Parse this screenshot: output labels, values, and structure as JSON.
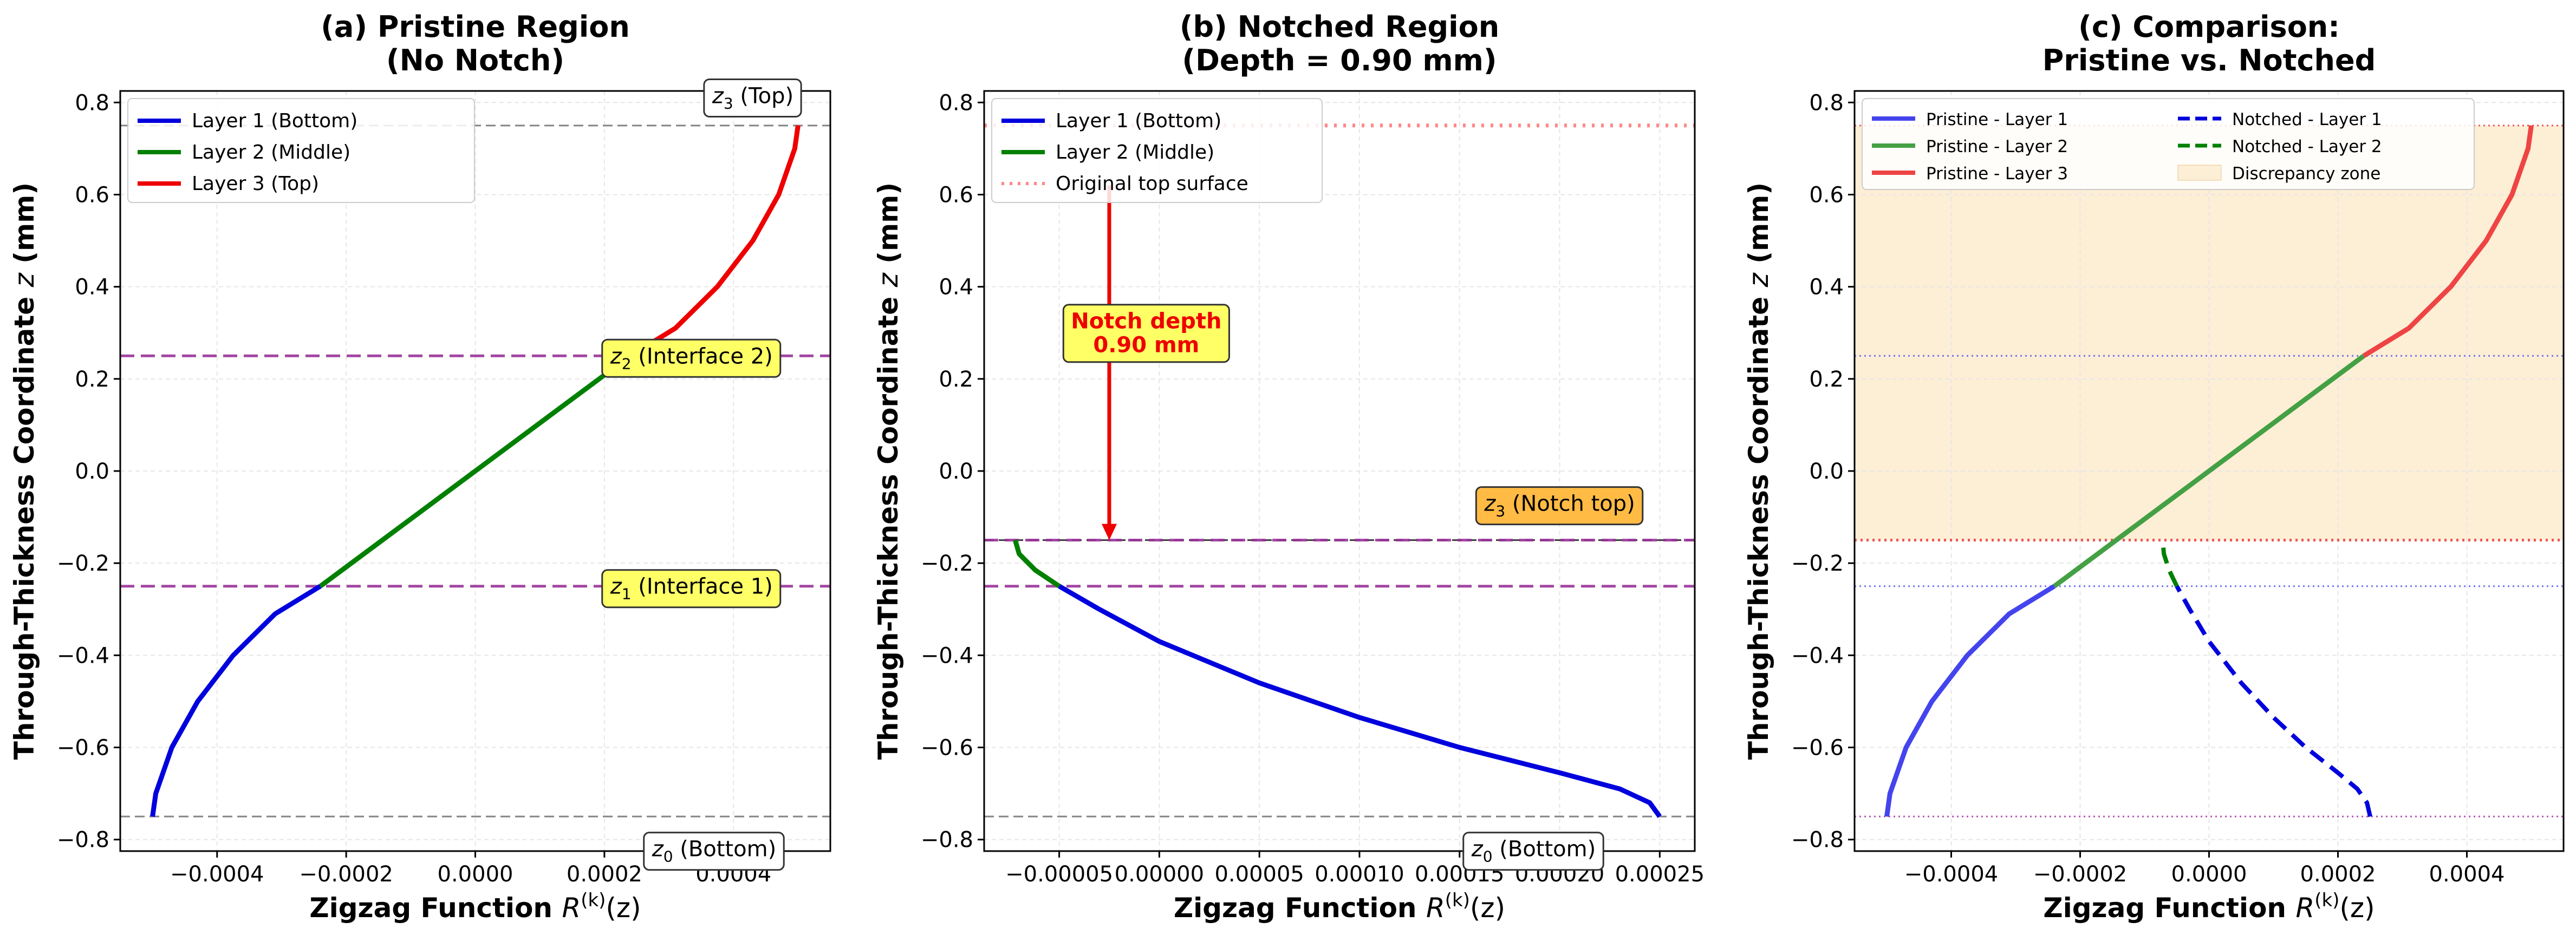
{
  "chart_data": [
    {
      "type": "line",
      "title_line1": "(a) Pristine Region",
      "title_line2": "(No Notch)",
      "xlabel_prefix": "Zigzag Function ",
      "xlabel_math": "R",
      "xlabel_sup": "(k)",
      "xlabel_suffix": "(z)",
      "ylabel_prefix": "Through-Thickness Coordinate ",
      "ylabel_math": "z",
      "ylabel_suffix": " (mm)",
      "xlim": [
        -0.00055,
        0.00055
      ],
      "ylim": [
        -0.825,
        0.825
      ],
      "xticks": [
        -0.0004,
        -0.0002,
        0.0,
        0.0002,
        0.0004
      ],
      "xtick_labels": [
        "−0.0004",
        "−0.0002",
        "0.0000",
        "0.0002",
        "0.0004"
      ],
      "yticks": [
        -0.8,
        -0.6,
        -0.4,
        -0.2,
        0.0,
        0.2,
        0.4,
        0.6,
        0.8
      ],
      "ytick_labels": [
        "−0.8",
        "−0.6",
        "−0.4",
        "−0.2",
        "0.0",
        "0.2",
        "0.4",
        "0.6",
        "0.8"
      ],
      "grid": true,
      "legend_position": "upper-left",
      "series": [
        {
          "name": "Layer 1 (Bottom)",
          "color": "#0000dd",
          "style": "solid",
          "x": [
            -0.0005,
            -0.000495,
            -0.00047,
            -0.00043,
            -0.000375,
            -0.00031,
            -0.00024
          ],
          "y": [
            -0.75,
            -0.7,
            -0.6,
            -0.5,
            -0.4,
            -0.31,
            -0.25
          ]
        },
        {
          "name": "Layer 2 (Middle)",
          "color": "#008000",
          "style": "solid",
          "x": [
            -0.00024,
            -0.00012,
            0.0,
            0.00012,
            0.00024
          ],
          "y": [
            -0.25,
            -0.125,
            0.0,
            0.125,
            0.25
          ]
        },
        {
          "name": "Layer 3 (Top)",
          "color": "#ee0000",
          "style": "solid",
          "x": [
            0.00024,
            0.00031,
            0.000375,
            0.00043,
            0.00047,
            0.000495,
            0.0005
          ],
          "y": [
            0.25,
            0.31,
            0.4,
            0.5,
            0.6,
            0.7,
            0.75
          ]
        }
      ],
      "hlines": [
        {
          "y": 0.75,
          "color": "#777777",
          "style": "dashed"
        },
        {
          "y": 0.25,
          "color": "#993399",
          "style": "dashed-bold"
        },
        {
          "y": -0.25,
          "color": "#993399",
          "style": "dashed-bold"
        },
        {
          "y": -0.75,
          "color": "#777777",
          "style": "dashed"
        }
      ],
      "annotations": [
        {
          "sub": "3",
          "text": " (Top)",
          "x": 0.00043,
          "y": 0.815,
          "bg": "#ffffff"
        },
        {
          "sub": "2",
          "text": " (Interface 2)",
          "x": 0.000335,
          "y": 0.25,
          "bg": "#ffff66"
        },
        {
          "sub": "1",
          "text": " (Interface 1)",
          "x": 0.000335,
          "y": -0.25,
          "bg": "#ffff66"
        },
        {
          "sub": "0",
          "text": " (Bottom)",
          "x": 0.00037,
          "y": -0.82,
          "bg": "#ffffff"
        }
      ]
    },
    {
      "type": "line",
      "title_line1": "(b) Notched Region",
      "title_line2": "(Depth = 0.90 mm)",
      "xlabel_prefix": "Zigzag Function ",
      "xlabel_math": "R",
      "xlabel_sup": "(k)",
      "xlabel_suffix": "(z)",
      "ylabel_prefix": "Through-Thickness Coordinate ",
      "ylabel_math": "z",
      "ylabel_suffix": " (mm)",
      "xlim": [
        -8.75e-05,
        0.0002675
      ],
      "ylim": [
        -0.825,
        0.825
      ],
      "xticks": [
        -5e-05,
        0.0,
        5e-05,
        0.0001,
        0.00015,
        0.0002,
        0.00025
      ],
      "xtick_labels": [
        "−0.00005",
        "0.00000",
        "0.00005",
        "0.00010",
        "0.00015",
        "0.00020",
        "0.00025"
      ],
      "yticks": [
        -0.8,
        -0.6,
        -0.4,
        -0.2,
        0.0,
        0.2,
        0.4,
        0.6,
        0.8
      ],
      "ytick_labels": [
        "−0.8",
        "−0.6",
        "−0.4",
        "−0.2",
        "0.0",
        "0.2",
        "0.4",
        "0.6",
        "0.8"
      ],
      "grid": true,
      "legend_position": "upper-left",
      "series": [
        {
          "name": "Layer 1 (Bottom)",
          "color": "#0000dd",
          "style": "solid",
          "x": [
            0.00025,
            0.000245,
            0.00023,
            0.0002,
            0.00015,
            0.0001,
            5e-05,
            0.0,
            -3e-05,
            -5e-05
          ],
          "y": [
            -0.75,
            -0.72,
            -0.69,
            -0.655,
            -0.6,
            -0.535,
            -0.46,
            -0.37,
            -0.3,
            -0.25
          ]
        },
        {
          "name": "Layer 2 (Middle)",
          "color": "#008000",
          "style": "solid",
          "x": [
            -5e-05,
            -6.2e-05,
            -7e-05,
            -7.2e-05
          ],
          "y": [
            -0.25,
            -0.215,
            -0.18,
            -0.15
          ]
        },
        {
          "name": "Original top surface",
          "color": "#ff8888",
          "style": "dotted",
          "x": [
            -8.75e-05,
            0.0002675
          ],
          "y": [
            0.75,
            0.75
          ]
        }
      ],
      "hlines": [
        {
          "y": -0.15,
          "color": "#222222",
          "style": "dashed"
        },
        {
          "y": -0.15,
          "color": "#993399",
          "style": "dashed-bold"
        },
        {
          "y": -0.25,
          "color": "#993399",
          "style": "dashed-bold"
        },
        {
          "y": -0.75,
          "color": "#777777",
          "style": "dashed"
        }
      ],
      "arrow": {
        "x": -2.5e-05,
        "y_from": 0.62,
        "y_to": -0.15,
        "color": "#ee0000"
      },
      "annotations": [
        {
          "text": "Notch depth",
          "text2": "0.90 mm",
          "x": -6.5e-06,
          "y": 0.3,
          "bg": "#ffff66",
          "color": "#ee0000",
          "bold": true
        },
        {
          "sub": "3",
          "text": " (Notch top)",
          "x": 0.0002,
          "y": -0.07,
          "bg": "#ffbb44"
        },
        {
          "sub": "0",
          "text": " (Bottom)",
          "x": 0.000187,
          "y": -0.82,
          "bg": "#ffffff"
        }
      ]
    },
    {
      "type": "line",
      "title_line1": "(c) Comparison:",
      "title_line2": "Pristine vs. Notched",
      "xlabel_prefix": "Zigzag Function ",
      "xlabel_math": "R",
      "xlabel_sup": "(k)",
      "xlabel_suffix": "(z)",
      "ylabel_prefix": "Through-Thickness Coordinate ",
      "ylabel_math": "z",
      "ylabel_suffix": " (mm)",
      "xlim": [
        -0.00055,
        0.00055
      ],
      "ylim": [
        -0.825,
        0.825
      ],
      "xticks": [
        -0.0004,
        -0.0002,
        0.0,
        0.0002,
        0.0004
      ],
      "xtick_labels": [
        "−0.0004",
        "−0.0002",
        "0.0000",
        "0.0002",
        "0.0004"
      ],
      "yticks": [
        -0.8,
        -0.6,
        -0.4,
        -0.2,
        0.0,
        0.2,
        0.4,
        0.6,
        0.8
      ],
      "ytick_labels": [
        "−0.8",
        "−0.6",
        "−0.4",
        "−0.2",
        "0.0",
        "0.2",
        "0.4",
        "0.6",
        "0.8"
      ],
      "grid": true,
      "legend_position": "upper-left",
      "legend_columns": 2,
      "shade": {
        "y_from": -0.15,
        "y_to": 0.75,
        "color": "#fdeed6",
        "name": "Discrepancy zone"
      },
      "series": [
        {
          "name": "Pristine - Layer 1",
          "color": "#4444ee",
          "style": "solid",
          "x": [
            -0.0005,
            -0.000495,
            -0.00047,
            -0.00043,
            -0.000375,
            -0.00031,
            -0.00024
          ],
          "y": [
            -0.75,
            -0.7,
            -0.6,
            -0.5,
            -0.4,
            -0.31,
            -0.25
          ]
        },
        {
          "name": "Pristine - Layer 2",
          "color": "#44a044",
          "style": "solid",
          "x": [
            -0.00024,
            -0.00012,
            0.0,
            0.00012,
            0.00024
          ],
          "y": [
            -0.25,
            -0.125,
            0.0,
            0.125,
            0.25
          ]
        },
        {
          "name": "Pristine - Layer 3",
          "color": "#ee4444",
          "style": "solid",
          "x": [
            0.00024,
            0.00031,
            0.000375,
            0.00043,
            0.00047,
            0.000495,
            0.0005
          ],
          "y": [
            0.25,
            0.31,
            0.4,
            0.5,
            0.6,
            0.7,
            0.75
          ]
        },
        {
          "name": "Notched - Layer 1",
          "color": "#0000dd",
          "style": "dashed",
          "x": [
            0.00025,
            0.000245,
            0.00023,
            0.0002,
            0.00015,
            0.0001,
            5e-05,
            0.0,
            -3e-05,
            -5e-05
          ],
          "y": [
            -0.75,
            -0.72,
            -0.69,
            -0.655,
            -0.6,
            -0.535,
            -0.46,
            -0.37,
            -0.3,
            -0.25
          ]
        },
        {
          "name": "Notched - Layer 2",
          "color": "#008000",
          "style": "dashed",
          "x": [
            -5e-05,
            -6.2e-05,
            -7e-05,
            -7.2e-05
          ],
          "y": [
            -0.25,
            -0.215,
            -0.18,
            -0.15
          ]
        }
      ],
      "hlines": [
        {
          "y": 0.75,
          "color": "#ee4444",
          "style": "dotted"
        },
        {
          "y": 0.25,
          "color": "#6666ee",
          "style": "dotted"
        },
        {
          "y": -0.15,
          "color": "#ee4444",
          "style": "dotted-bold"
        },
        {
          "y": -0.25,
          "color": "#6666ee",
          "style": "dotted"
        },
        {
          "y": -0.75,
          "color": "#aa44aa",
          "style": "dotted"
        }
      ],
      "annotations": []
    }
  ]
}
